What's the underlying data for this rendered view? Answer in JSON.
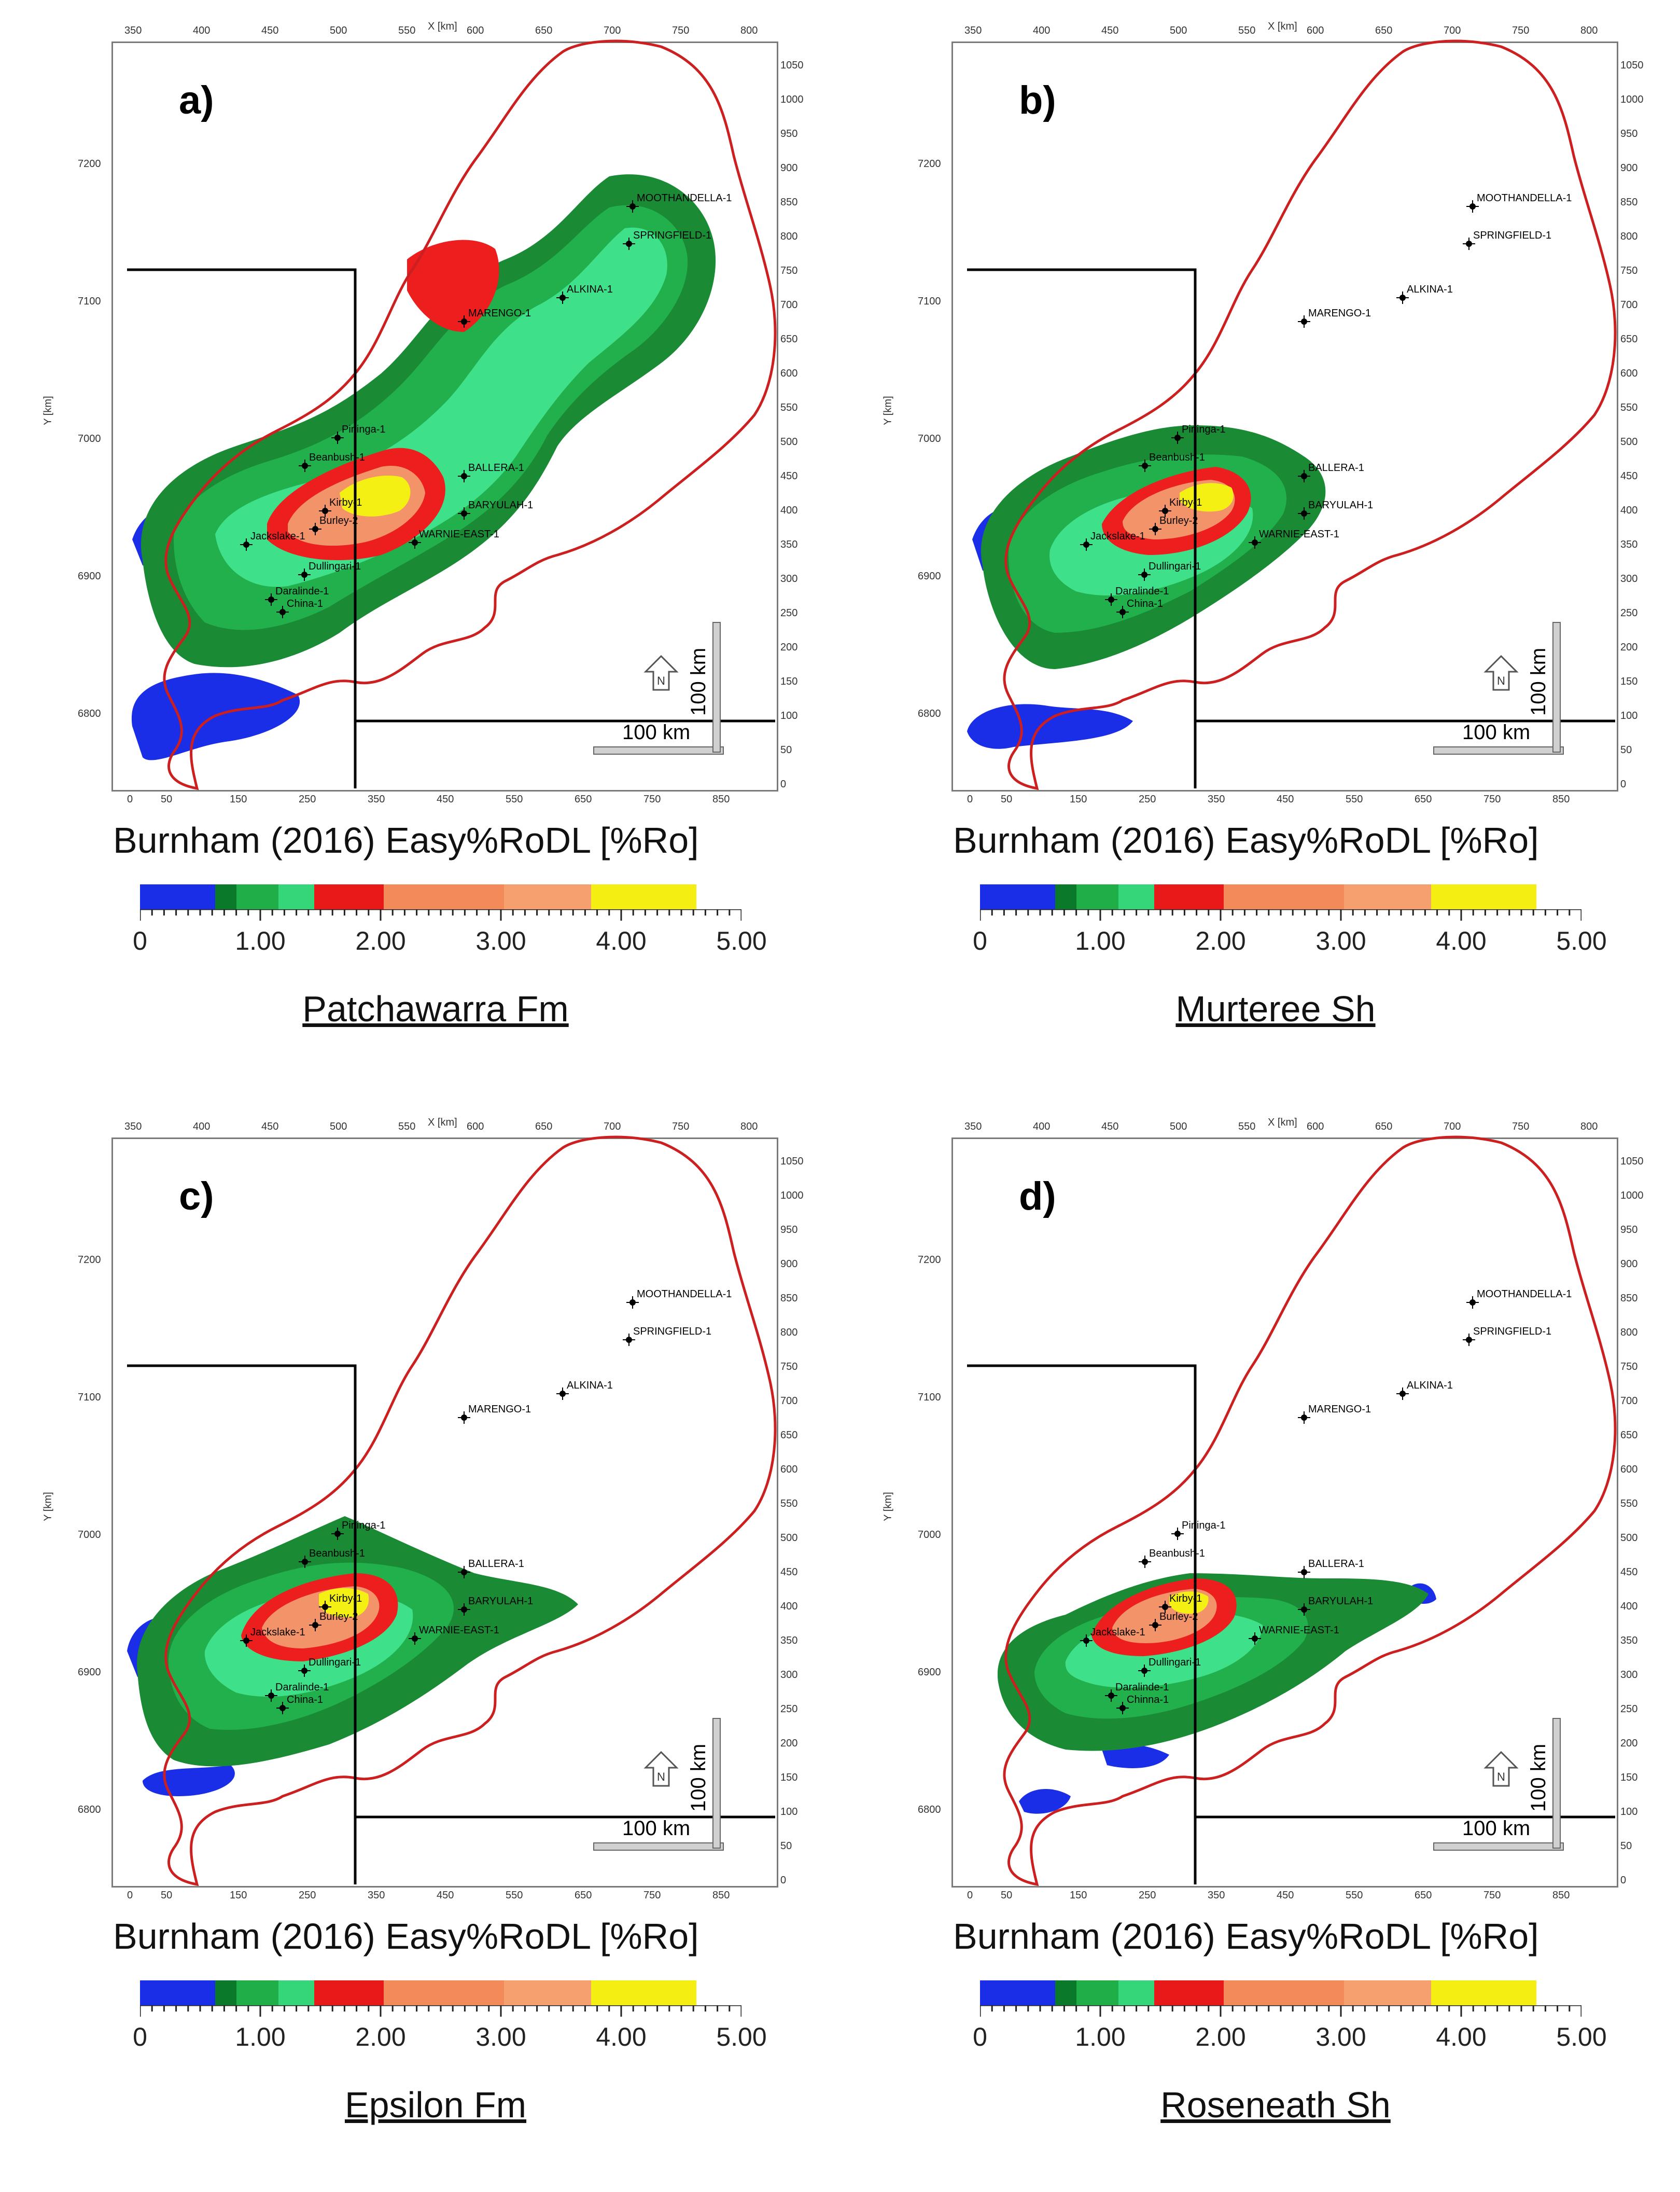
{
  "figure": {
    "axis_top_title": "X [km]",
    "axis_left_title": "Y [km]",
    "x_top_ticks": [
      "350",
      "400",
      "450",
      "500",
      "550",
      "600",
      "650",
      "700",
      "750",
      "800"
    ],
    "x_bottom_ticks": [
      "0",
      "50",
      "150",
      "250",
      "350",
      "450",
      "550",
      "650",
      "750",
      "850"
    ],
    "y_left_ticks": [
      "7200",
      "7100",
      "7000",
      "6900",
      "6800"
    ],
    "y_right_ticks": [
      "1050",
      "1000",
      "950",
      "900",
      "850",
      "800",
      "750",
      "700",
      "650",
      "600",
      "550",
      "500",
      "450",
      "400",
      "350",
      "300",
      "250",
      "200",
      "150",
      "100",
      "50",
      "0"
    ],
    "scale_bar_label_h": "100 km",
    "scale_bar_label_v": "100 km",
    "north_label": "N",
    "colorbar_title": "Burnham (2016) Easy%RoDL [%Ro]",
    "colorbar_ticks": [
      "0",
      "1.00",
      "2.00",
      "3.00",
      "4.00",
      "5.00"
    ],
    "colorbar_colors": [
      "#1a2ee8",
      "#0a7a2a",
      "#1fae48",
      "#35d67a",
      "#e81919",
      "#f28a5a",
      "#f6a070",
      "#f4ee12"
    ],
    "colors": {
      "boundary": "#cc1f1f",
      "low": "#1a2ee8",
      "dark_green": "#1a8a34",
      "green": "#22b04c",
      "light_green": "#3fe08a",
      "red": "#ec1e1e",
      "orange": "#f3936a",
      "yellow": "#f4f014"
    }
  },
  "panels": [
    {
      "letter": "a)",
      "formation": "Patchawarra Fm",
      "wells": [
        "MOOTHANDELLA-1",
        "SPRINGFIELD-1",
        "ALKINA-1",
        "MARENGO-1",
        "Pininga-1",
        "Beanbush-1",
        "BALLERA-1",
        "Kirby-1",
        "Burley-2",
        "BARYULAH-1",
        "WARNIE-EAST-1",
        "Jackslake-1",
        "Dullingari-1",
        "Daralinde-1",
        "China-1"
      ]
    },
    {
      "letter": "b)",
      "formation": "Murteree Sh",
      "wells": [
        "MOOTHANDELLA-1",
        "SPRINGFIELD-1",
        "ALKINA-1",
        "MARENGO-1",
        "Pininga-1",
        "Beanbush-1",
        "BALLERA-1",
        "Kirby-1",
        "Burley-2",
        "BARYULAH-1",
        "WARNIE-EAST-1",
        "Jackslake-1",
        "Dullingari-1",
        "Daralinde-1",
        "China-1"
      ]
    },
    {
      "letter": "c)",
      "formation": "Epsilon Fm",
      "wells": [
        "MOOTHANDELLA-1",
        "SPRINGFIELD-1",
        "ALKINA-1",
        "MARENGO-1",
        "Pininga-1",
        "Beanbush-1",
        "BALLERA-1",
        "Kirby-1",
        "Burley-2",
        "BARYULAH-1",
        "WARNIE-EAST-1",
        "Jackslake-1",
        "Dullingari-1",
        "Daralinde-1",
        "China-1"
      ]
    },
    {
      "letter": "d)",
      "formation": "Roseneath Sh",
      "wells": [
        "MOOTHANDELLA-1",
        "SPRINGFIELD-1",
        "ALKINA-1",
        "MARENGO-1",
        "Pininga-1",
        "Beanbush-1",
        "BALLERA-1",
        "Kirby-1",
        "Burley-2",
        "BARYULAH-1",
        "WARNIE-EAST-1",
        "Jackslake-1",
        "Dullingari-1",
        "Daralinde-1",
        "Chinna-1"
      ]
    }
  ]
}
